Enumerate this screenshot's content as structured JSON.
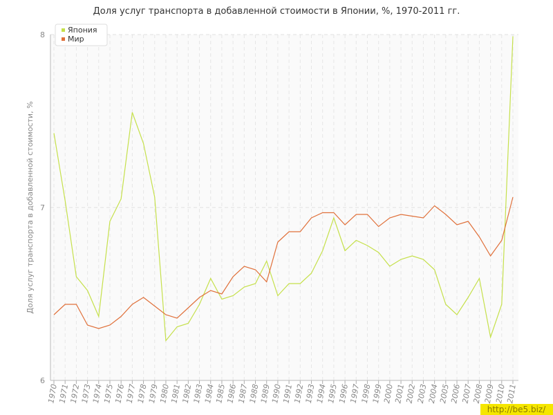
{
  "chart_data": {
    "type": "line",
    "title": "Доля услуг транспорта в добавленной стоимости в Японии, %, 1970-2011 гг.",
    "y_label": "Доля услуг транспорта в добавленной стоимости, %",
    "watermark": "http://be5.biz/",
    "categories": [
      "1970",
      "1971",
      "1972",
      "1973",
      "1974",
      "1975",
      "1976",
      "1977",
      "1978",
      "1979",
      "1980",
      "1981",
      "1982",
      "1983",
      "1984",
      "1985",
      "1986",
      "1987",
      "1988",
      "1989",
      "1990",
      "1991",
      "1992",
      "1993",
      "1994",
      "1995",
      "1996",
      "1997",
      "1998",
      "1999",
      "2000",
      "2001",
      "2002",
      "2003",
      "2004",
      "2005",
      "2006",
      "2007",
      "2008",
      "2009",
      "2010",
      "2011"
    ],
    "series": [
      {
        "name": "Япония",
        "color": "#c5e04a",
        "values": [
          7.43,
          7.04,
          6.6,
          6.52,
          6.37,
          6.92,
          7.05,
          7.55,
          7.37,
          7.06,
          6.23,
          6.31,
          6.33,
          6.44,
          6.59,
          6.47,
          6.49,
          6.54,
          6.56,
          6.69,
          6.49,
          6.56,
          6.56,
          6.62,
          6.75,
          6.94,
          6.75,
          6.81,
          6.78,
          6.74,
          6.66,
          6.7,
          6.72,
          6.7,
          6.64,
          6.44,
          6.38,
          6.48,
          6.59,
          6.25,
          6.44,
          7.99
        ]
      },
      {
        "name": "Мир",
        "color": "#e0703a",
        "values": [
          6.38,
          6.44,
          6.44,
          6.32,
          6.3,
          6.32,
          6.37,
          6.44,
          6.48,
          6.43,
          6.38,
          6.36,
          6.42,
          6.48,
          6.52,
          6.5,
          6.6,
          6.66,
          6.64,
          6.57,
          6.8,
          6.86,
          6.86,
          6.94,
          6.97,
          6.97,
          6.9,
          6.96,
          6.96,
          6.89,
          6.94,
          6.96,
          6.95,
          6.94,
          7.01,
          6.96,
          6.9,
          6.92,
          6.83,
          6.72,
          6.81,
          7.06
        ]
      }
    ],
    "ylim": [
      6,
      8
    ],
    "yticks": [
      6,
      7,
      8
    ],
    "grid": true,
    "legend": "top-left"
  }
}
